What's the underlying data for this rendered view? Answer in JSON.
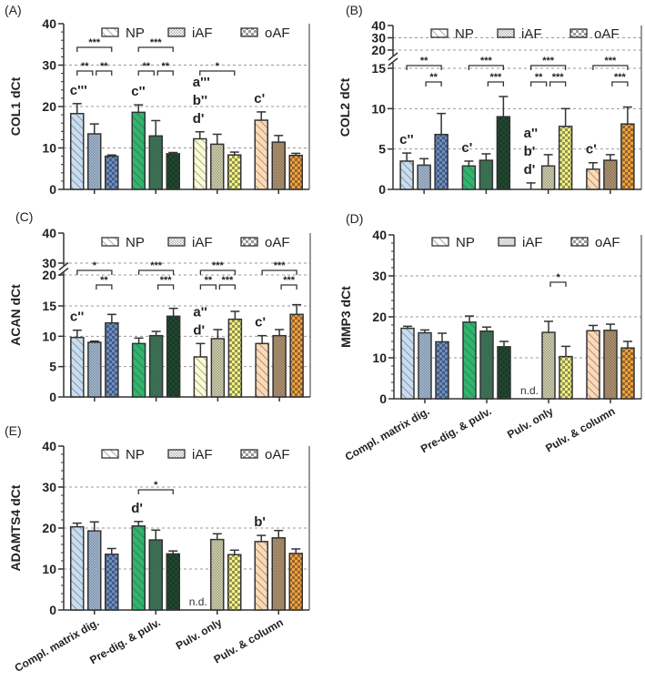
{
  "series_names": [
    "NP",
    "iAF",
    "oAF"
  ],
  "group_colors": [
    [
      "#c9ddf1",
      "#a9c1dc",
      "#6b8ec4"
    ],
    [
      "#2fb56d",
      "#3d7d5b",
      "#1d4a2f"
    ],
    [
      "#fbfbd6",
      "#d9d9b4",
      "#f1f083"
    ],
    [
      "#fdd9b6",
      "#b99a72",
      "#f0a13e"
    ]
  ],
  "chart_data": [
    {
      "type": "bar",
      "panel": "(A)",
      "ylabel": "COL1 dCt",
      "ylim": [
        0,
        40
      ],
      "yticks": [
        "0",
        "10",
        "20",
        "30",
        "40"
      ],
      "grid": [
        10,
        20,
        30
      ],
      "values": [
        [
          18.3,
          13.4,
          8.0
        ],
        [
          18.6,
          12.9,
          8.6
        ],
        [
          12.2,
          10.9,
          8.3
        ],
        [
          16.7,
          11.4,
          8.2
        ]
      ],
      "errors": [
        [
          2.4,
          2.4,
          0.3
        ],
        [
          1.8,
          3.7,
          0.3
        ],
        [
          1.7,
          2.4,
          0.7
        ],
        [
          2.0,
          1.6,
          0.5
        ]
      ],
      "letters": [
        [
          "c'''"
        ],
        [
          "c''"
        ],
        [
          "a'''",
          "b''",
          "d'"
        ],
        [
          "c'"
        ]
      ],
      "brackets": [
        {
          "group": 0,
          "from": 0,
          "to": 2,
          "label": "***",
          "tier": 2
        },
        {
          "group": 0,
          "from": 0,
          "to": 1,
          "label": "**",
          "tier": 1
        },
        {
          "group": 0,
          "from": 1,
          "to": 2,
          "label": "**",
          "tier": 1
        },
        {
          "group": 1,
          "from": 0,
          "to": 2,
          "label": "***",
          "tier": 2
        },
        {
          "group": 1,
          "from": 0,
          "to": 1,
          "label": "**",
          "tier": 1
        },
        {
          "group": 1,
          "from": 1,
          "to": 2,
          "label": "**",
          "tier": 1
        },
        {
          "group": 2,
          "from": 0,
          "to": 2,
          "label": "*",
          "tier": 1
        }
      ]
    },
    {
      "type": "bar",
      "panel": "(B)",
      "ylabel": "COL2 dCt",
      "ylim": [
        0,
        40
      ],
      "axis_break": [
        15,
        20
      ],
      "yticks": [
        "0",
        "5",
        "10",
        "15",
        "20",
        "30",
        "40"
      ],
      "grid": [
        5,
        10,
        15,
        20,
        30
      ],
      "values": [
        [
          3.5,
          3.0,
          6.8
        ],
        [
          2.9,
          3.6,
          9.0
        ],
        [
          0.0,
          2.9,
          7.8
        ],
        [
          2.5,
          3.6,
          8.1
        ]
      ],
      "errors": [
        [
          1.0,
          0.8,
          2.6
        ],
        [
          0.6,
          0.8,
          2.5
        ],
        [
          0.8,
          1.4,
          2.2
        ],
        [
          0.8,
          0.7,
          2.1
        ]
      ],
      "letters": [
        [
          "c''"
        ],
        [
          "c'"
        ],
        [
          "a''",
          "b'",
          "d'"
        ],
        [
          "c'"
        ]
      ],
      "brackets": [
        {
          "group": 0,
          "from": 0,
          "to": 2,
          "label": "**",
          "tier": 2
        },
        {
          "group": 0,
          "from": 1,
          "to": 2,
          "label": "**",
          "tier": 1
        },
        {
          "group": 1,
          "from": 0,
          "to": 2,
          "label": "***",
          "tier": 2
        },
        {
          "group": 1,
          "from": 1,
          "to": 2,
          "label": "***",
          "tier": 1
        },
        {
          "group": 2,
          "from": 0,
          "to": 2,
          "label": "***",
          "tier": 2
        },
        {
          "group": 2,
          "from": 0,
          "to": 1,
          "label": "**",
          "tier": 1
        },
        {
          "group": 2,
          "from": 1,
          "to": 2,
          "label": "***",
          "tier": 1
        },
        {
          "group": 3,
          "from": 0,
          "to": 2,
          "label": "***",
          "tier": 2
        },
        {
          "group": 3,
          "from": 1,
          "to": 2,
          "label": "***",
          "tier": 1
        }
      ]
    },
    {
      "type": "bar",
      "panel": "(C)",
      "ylabel": "ACAN dCt",
      "ylim": [
        0,
        40
      ],
      "axis_break": [
        20,
        30
      ],
      "yticks": [
        "0",
        "5",
        "10",
        "15",
        "20",
        "30",
        "40"
      ],
      "grid": [
        5,
        10,
        15,
        20,
        30
      ],
      "values": [
        [
          9.8,
          9.0,
          12.2
        ],
        [
          8.8,
          10.1,
          13.3
        ],
        [
          6.6,
          9.6,
          12.8
        ],
        [
          8.8,
          10.1,
          13.6
        ]
      ],
      "errors": [
        [
          1.2,
          0.2,
          1.4
        ],
        [
          0.9,
          0.7,
          1.3
        ],
        [
          2.2,
          1.5,
          1.3
        ],
        [
          1.3,
          1.0,
          1.6
        ]
      ],
      "letters": [
        [
          "c''"
        ],
        [],
        [
          "a''",
          "d'"
        ],
        [
          "c'"
        ]
      ],
      "brackets": [
        {
          "group": 0,
          "from": 0,
          "to": 2,
          "label": "*",
          "tier": 2
        },
        {
          "group": 0,
          "from": 1,
          "to": 2,
          "label": "**",
          "tier": 1
        },
        {
          "group": 1,
          "from": 0,
          "to": 2,
          "label": "***",
          "tier": 2
        },
        {
          "group": 1,
          "from": 1,
          "to": 2,
          "label": "***",
          "tier": 1
        },
        {
          "group": 2,
          "from": 0,
          "to": 2,
          "label": "***",
          "tier": 2
        },
        {
          "group": 2,
          "from": 0,
          "to": 1,
          "label": "**",
          "tier": 1
        },
        {
          "group": 2,
          "from": 1,
          "to": 2,
          "label": "***",
          "tier": 1
        },
        {
          "group": 3,
          "from": 0,
          "to": 2,
          "label": "***",
          "tier": 2
        },
        {
          "group": 3,
          "from": 1,
          "to": 2,
          "label": "***",
          "tier": 1
        }
      ]
    },
    {
      "type": "bar",
      "panel": "(D)",
      "ylabel": "MMP3 dCt",
      "ylim": [
        0,
        40
      ],
      "yticks": [
        "0",
        "10",
        "20",
        "30",
        "40"
      ],
      "grid": [
        10,
        20,
        30
      ],
      "categories": [
        "Compl. matrix dig.",
        "Pre-dig. & pulv.",
        "Pulv. only",
        "Pulv. & column"
      ],
      "values": [
        [
          17.2,
          16.1,
          13.9
        ],
        [
          18.7,
          16.5,
          12.7
        ],
        [
          null,
          16.2,
          10.3
        ],
        [
          16.6,
          16.7,
          12.4
        ]
      ],
      "errors": [
        [
          0.5,
          0.7,
          2.1
        ],
        [
          1.5,
          1.0,
          1.3
        ],
        [
          null,
          2.7,
          2.5
        ],
        [
          1.3,
          1.5,
          1.6
        ]
      ],
      "nd_label": "n.d.",
      "letters": [
        [],
        [],
        [],
        []
      ],
      "brackets": [
        {
          "group": 2,
          "from": 1,
          "to": 2,
          "label": "*",
          "tier": 1
        }
      ]
    },
    {
      "type": "bar",
      "panel": "(E)",
      "ylabel": "ADAMTS4 dCt",
      "ylim": [
        0,
        40
      ],
      "yticks": [
        "0",
        "10",
        "20",
        "30",
        "40"
      ],
      "grid": [
        10,
        20,
        30
      ],
      "categories": [
        "Compl. matrix dig.",
        "Pre-dig. & pulv.",
        "Pulv. only",
        "Pulv. & column"
      ],
      "values": [
        [
          20.3,
          19.3,
          13.6
        ],
        [
          20.5,
          17.1,
          13.7
        ],
        [
          null,
          17.2,
          13.5
        ],
        [
          16.7,
          17.6,
          13.8
        ]
      ],
      "errors": [
        [
          0.9,
          2.2,
          1.4
        ],
        [
          1.1,
          2.4,
          0.7
        ],
        [
          null,
          1.4,
          1.1
        ],
        [
          1.5,
          1.8,
          1.1
        ]
      ],
      "nd_label": "n.d.",
      "letters": [
        [],
        [
          "d'"
        ],
        [],
        [
          "b'"
        ]
      ],
      "brackets": [
        {
          "group": 1,
          "from": 0,
          "to": 2,
          "label": "*",
          "tier": 2
        }
      ]
    }
  ]
}
